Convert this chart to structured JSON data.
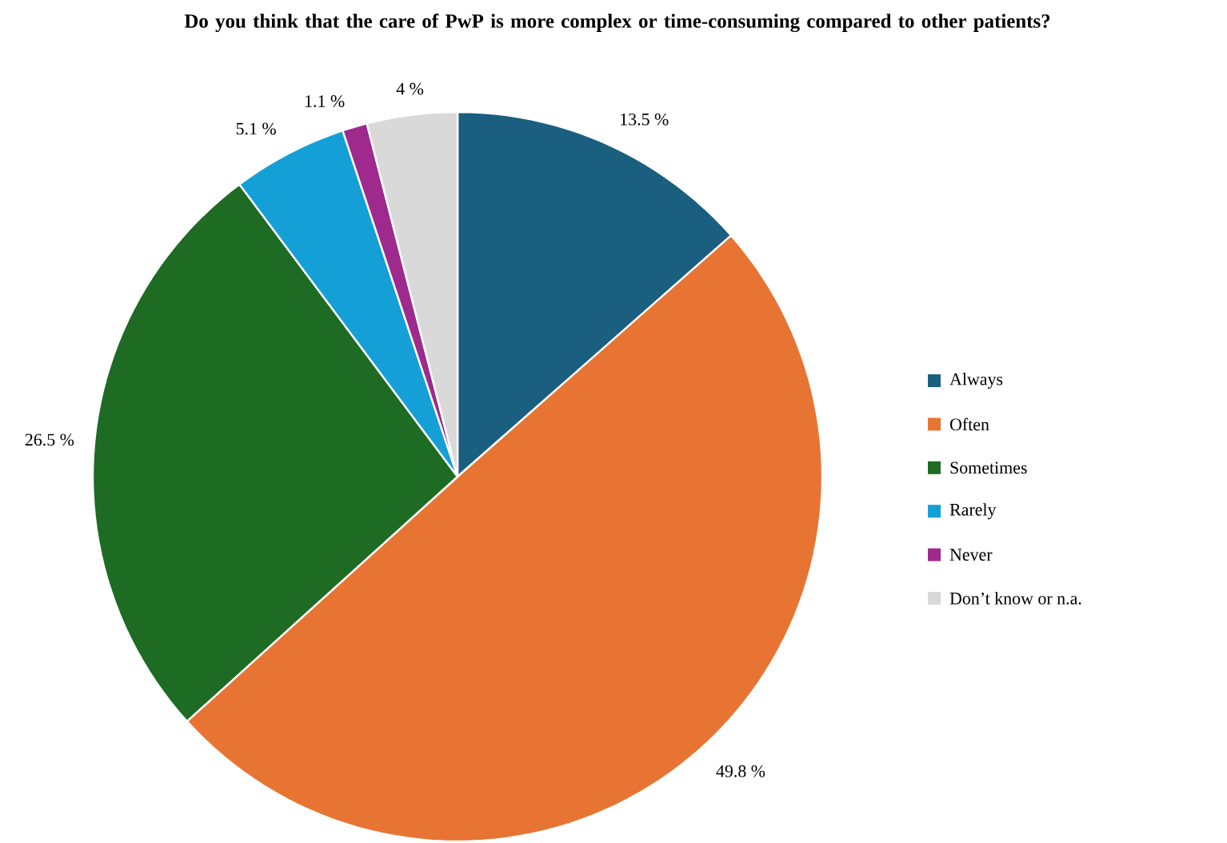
{
  "chart_data": {
    "type": "pie",
    "title": "Do you think that the care of PwP is more complex or time-consuming compared to other patients?",
    "categories": [
      "Always",
      "Often",
      "Sometimes",
      "Rarely",
      "Never",
      "Don’t know or n.a."
    ],
    "values": [
      13.5,
      49.8,
      26.5,
      5.1,
      1.1,
      4
    ],
    "value_labels": [
      "13.5 %",
      "49.8 %",
      "26.5 %",
      "5.1 %",
      "1.1 %",
      "4 %"
    ],
    "colors": [
      "#1a5f80",
      "#e87433",
      "#1e6b24",
      "#14a0d6",
      "#9e2a8e",
      "#d9d9d9"
    ],
    "legend": "right"
  }
}
